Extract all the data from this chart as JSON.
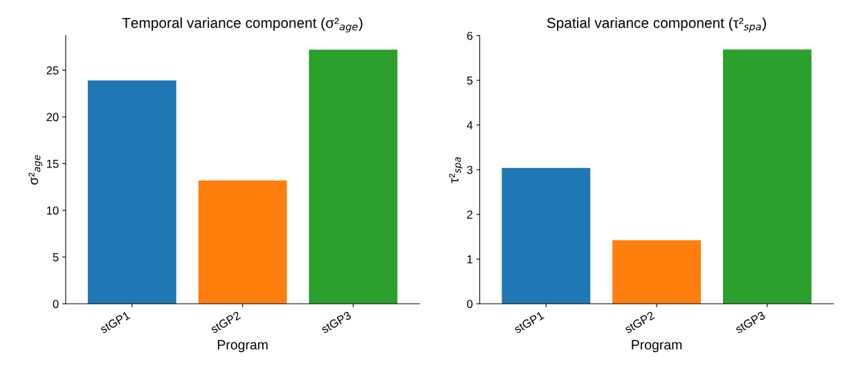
{
  "chart_data": [
    {
      "type": "bar",
      "title": "Temporal variance component (σ²$_{age}$)",
      "xlabel": "Program",
      "ylabel": "σ²$_{age}$",
      "categories": [
        "stGP1",
        "stGP2",
        "stGP3"
      ],
      "values": [
        23.9,
        13.2,
        27.2
      ],
      "colors": [
        "#1f77b4",
        "#ff7f0e",
        "#2ca02c"
      ],
      "ylim": [
        0,
        28.7
      ],
      "yticks": [
        0,
        5,
        10,
        15,
        20,
        25
      ],
      "grid": false
    },
    {
      "type": "bar",
      "title": "Spatial variance component (τ²$_{spa}$)",
      "xlabel": "Program",
      "ylabel": "τ²$_{spa}$",
      "categories": [
        "stGP1",
        "stGP2",
        "stGP3"
      ],
      "values": [
        3.04,
        1.42,
        5.69
      ],
      "colors": [
        "#1f77b4",
        "#ff7f0e",
        "#2ca02c"
      ],
      "ylim": [
        0,
        6
      ],
      "yticks": [
        0,
        1,
        2,
        3,
        4,
        5,
        6
      ],
      "grid": false
    }
  ]
}
